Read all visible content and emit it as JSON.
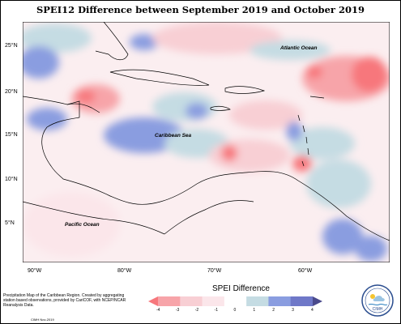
{
  "title": "SPEI12 Difference between September 2019 and October 2019",
  "map": {
    "lat_labels": [
      "25°N",
      "20°N",
      "15°N",
      "10°N",
      "5°N"
    ],
    "lon_labels": [
      "90°W",
      "80°W",
      "70°W",
      "60°W"
    ],
    "ocean_labels": {
      "atlantic": "Atlantic Ocean",
      "caribbean": "Caribbean Sea",
      "pacific": "Pacific Ocean"
    }
  },
  "legend": {
    "title": "SPEI Difference",
    "ticks": [
      "-4",
      "-3",
      "-2",
      "-1",
      "0",
      "1",
      "2",
      "3",
      "4"
    ],
    "colors": [
      "#f7777c",
      "#f7a4a9",
      "#f8cfd4",
      "#fbe6ea",
      "#ffffff",
      "#c5dce3",
      "#8a9de0",
      "#6f78c8",
      "#4a4a8c"
    ]
  },
  "footer": {
    "description": "Precipitation Map of the Caribbean Region. Created by aggregating station based observations, provided by CariCOF, with NCEP/NCAR Reanalysis Data.",
    "credit": "CIMH Nov-2019"
  },
  "logo": {
    "text": "CIMH",
    "icon": "cimh-logo-icon"
  }
}
